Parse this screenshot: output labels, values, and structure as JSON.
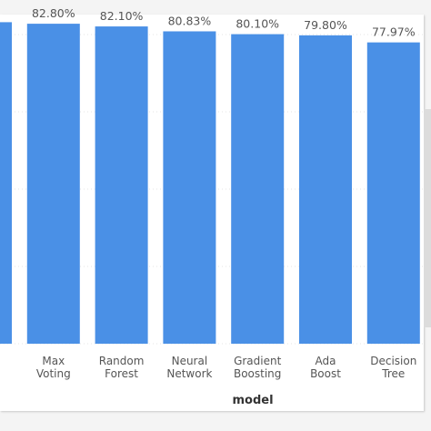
{
  "chart_data": {
    "type": "bar",
    "xlabel": "model",
    "categories": [
      "",
      "Max\nVoting",
      "Random\nForest",
      "Neural\nNetwork",
      "Gradient\nBoosting",
      "Ada\nBoost",
      "Decision\nTree"
    ],
    "values": [
      83.2,
      82.8,
      82.1,
      80.83,
      80.1,
      79.8,
      77.97
    ],
    "value_labels": [
      "",
      "82.80%",
      "82.10%",
      "80.83%",
      "80.10%",
      "79.80%",
      "77.97%"
    ],
    "ylim": [
      0,
      88
    ],
    "grid": true,
    "bar_color": "#4a90e6"
  }
}
